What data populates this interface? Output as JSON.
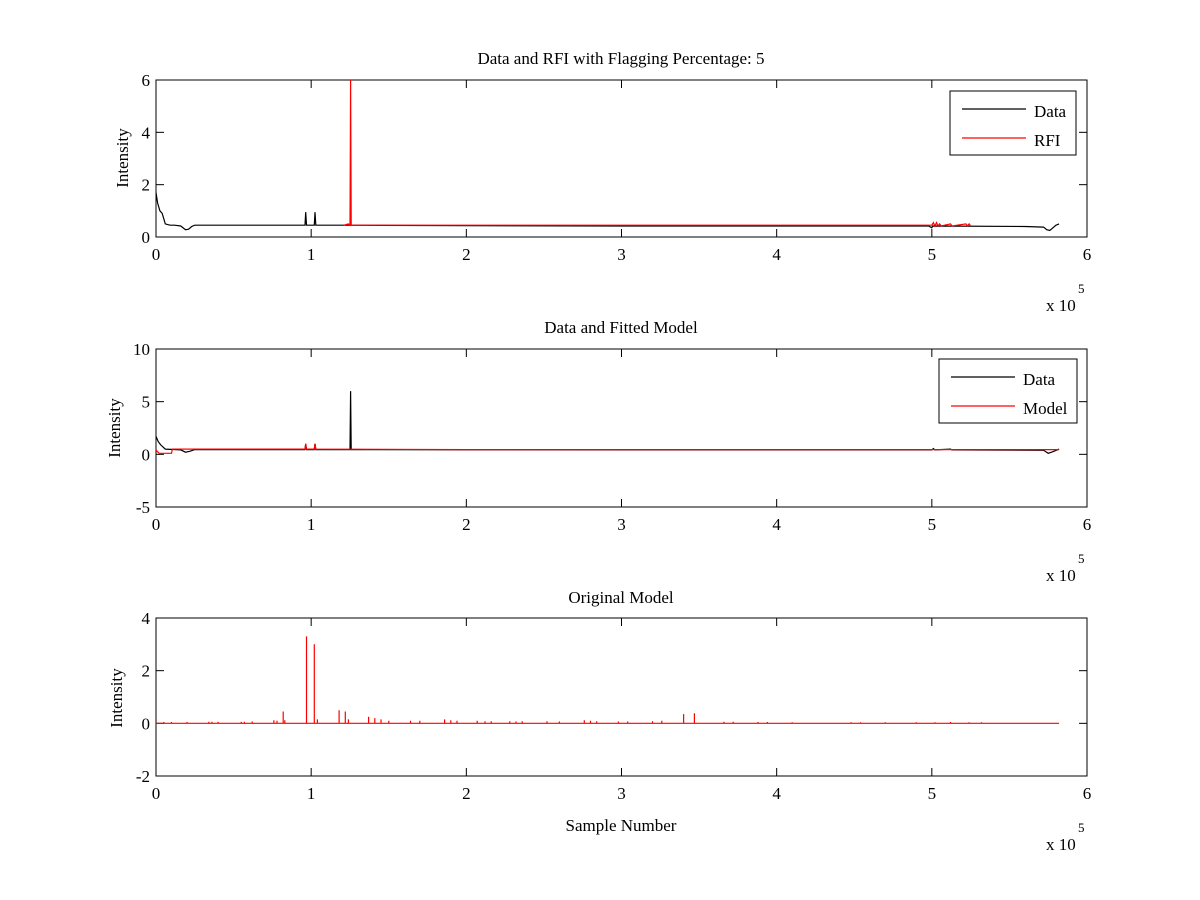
{
  "figure": {
    "background": "#ffffff"
  },
  "chart_data": [
    {
      "type": "line",
      "title": "Data and RFI with Flagging Percentage: 5",
      "xlabel": "",
      "ylabel": "Intensity",
      "xlim": [
        0,
        600000
      ],
      "ylim": [
        0,
        6
      ],
      "xticks": [
        0,
        100000,
        200000,
        300000,
        400000,
        500000,
        600000
      ],
      "xtick_labels": [
        "0",
        "1",
        "2",
        "3",
        "4",
        "5",
        "6"
      ],
      "yticks": [
        0,
        2,
        4,
        6
      ],
      "ytick_labels": [
        "0",
        "2",
        "4",
        "6"
      ],
      "x_exponent": {
        "base": "x 10",
        "power": "5"
      },
      "grid": false,
      "legend_position": "top-right",
      "series": [
        {
          "name": "Data",
          "color": "#000000",
          "points": [
            [
              0,
              1.7
            ],
            [
              1000,
              1.3
            ],
            [
              2500,
              1.0
            ],
            [
              4000,
              0.9
            ],
            [
              6000,
              0.5
            ],
            [
              9000,
              0.45
            ],
            [
              12000,
              0.45
            ],
            [
              16000,
              0.42
            ],
            [
              19000,
              0.28
            ],
            [
              21000,
              0.3
            ],
            [
              23000,
              0.4
            ],
            [
              25000,
              0.45
            ],
            [
              60000,
              0.45
            ],
            [
              96000,
              0.45
            ],
            [
              96500,
              0.95
            ],
            [
              97000,
              0.45
            ],
            [
              102000,
              0.45
            ],
            [
              102500,
              0.95
            ],
            [
              103000,
              0.45
            ],
            [
              120000,
              0.45
            ],
            [
              200000,
              0.43
            ],
            [
              300000,
              0.42
            ],
            [
              400000,
              0.42
            ],
            [
              498000,
              0.42
            ],
            [
              500000,
              0.35
            ],
            [
              500500,
              0.42
            ],
            [
              560000,
              0.4
            ],
            [
              572000,
              0.38
            ],
            [
              574000,
              0.28
            ],
            [
              576000,
              0.25
            ],
            [
              578000,
              0.35
            ],
            [
              580000,
              0.45
            ],
            [
              582000,
              0.5
            ]
          ]
        },
        {
          "name": "RFI",
          "color": "#ff0000",
          "points": [
            [
              121000,
              0.45
            ],
            [
              124000,
              0.5
            ],
            [
              125000,
              0.45
            ],
            [
              125400,
              6.0
            ],
            [
              125800,
              0.45
            ],
            [
              128000,
              0.45
            ],
            [
              500000,
              0.45
            ],
            [
              501000,
              0.55
            ],
            [
              502000,
              0.42
            ],
            [
              503000,
              0.55
            ],
            [
              504000,
              0.42
            ],
            [
              505000,
              0.5
            ],
            [
              506000,
              0.42
            ],
            [
              512000,
              0.5
            ],
            [
              513000,
              0.42
            ],
            [
              522000,
              0.5
            ],
            [
              523000,
              0.42
            ],
            [
              524000,
              0.5
            ],
            [
              525000,
              0.42
            ]
          ]
        }
      ]
    },
    {
      "type": "line",
      "title": "Data and Fitted Model",
      "xlabel": "",
      "ylabel": "Intensity",
      "xlim": [
        0,
        600000
      ],
      "ylim": [
        -5,
        10
      ],
      "xticks": [
        0,
        100000,
        200000,
        300000,
        400000,
        500000,
        600000
      ],
      "xtick_labels": [
        "0",
        "1",
        "2",
        "3",
        "4",
        "5",
        "6"
      ],
      "yticks": [
        -5,
        0,
        5,
        10
      ],
      "ytick_labels": [
        "-5",
        "0",
        "5",
        "10"
      ],
      "x_exponent": {
        "base": "x 10",
        "power": "5"
      },
      "grid": false,
      "legend_position": "top-right",
      "series": [
        {
          "name": "Data",
          "color": "#000000",
          "points": [
            [
              0,
              1.7
            ],
            [
              1500,
              1.2
            ],
            [
              3000,
              0.9
            ],
            [
              6000,
              0.5
            ],
            [
              16000,
              0.42
            ],
            [
              19000,
              0.2
            ],
            [
              22000,
              0.3
            ],
            [
              25000,
              0.45
            ],
            [
              96000,
              0.45
            ],
            [
              96500,
              1.0
            ],
            [
              97000,
              0.45
            ],
            [
              102000,
              0.45
            ],
            [
              102500,
              1.0
            ],
            [
              103000,
              0.45
            ],
            [
              125000,
              0.45
            ],
            [
              125400,
              6.0
            ],
            [
              125800,
              0.45
            ],
            [
              200000,
              0.43
            ],
            [
              400000,
              0.42
            ],
            [
              500000,
              0.42
            ],
            [
              501000,
              0.55
            ],
            [
              502000,
              0.42
            ],
            [
              512000,
              0.5
            ],
            [
              513000,
              0.42
            ],
            [
              572000,
              0.38
            ],
            [
              575000,
              0.1
            ],
            [
              578000,
              0.25
            ],
            [
              582000,
              0.5
            ]
          ]
        },
        {
          "name": "Model",
          "color": "#ff0000",
          "points": [
            [
              0,
              0.4
            ],
            [
              2000,
              0.1
            ],
            [
              10000,
              0.1
            ],
            [
              10500,
              0.5
            ],
            [
              96000,
              0.5
            ],
            [
              96500,
              1.0
            ],
            [
              97000,
              0.5
            ],
            [
              102000,
              0.5
            ],
            [
              102500,
              1.0
            ],
            [
              103000,
              0.5
            ],
            [
              200000,
              0.45
            ],
            [
              400000,
              0.45
            ],
            [
              582000,
              0.45
            ]
          ]
        }
      ]
    },
    {
      "type": "line",
      "title": "Original Model",
      "xlabel": "Sample Number",
      "ylabel": "Intensity",
      "xlim": [
        0,
        600000
      ],
      "ylim": [
        -2,
        4
      ],
      "xticks": [
        0,
        100000,
        200000,
        300000,
        400000,
        500000,
        600000
      ],
      "xtick_labels": [
        "0",
        "1",
        "2",
        "3",
        "4",
        "5",
        "6"
      ],
      "yticks": [
        -2,
        0,
        2,
        4
      ],
      "ytick_labels": [
        "-2",
        "0",
        "2",
        "4"
      ],
      "x_exponent": {
        "base": "x 10",
        "power": "5"
      },
      "grid": false,
      "legend_position": "none",
      "series": [
        {
          "name": "",
          "color": "#ff0000",
          "baseline": 0,
          "spikes": [
            [
              5000,
              0.05
            ],
            [
              10000,
              0.05
            ],
            [
              20000,
              0.05
            ],
            [
              34000,
              0.06
            ],
            [
              36000,
              0.06
            ],
            [
              40000,
              0.06
            ],
            [
              55000,
              0.06
            ],
            [
              57000,
              0.06
            ],
            [
              62000,
              0.07
            ],
            [
              76000,
              0.12
            ],
            [
              78000,
              0.1
            ],
            [
              82000,
              0.45
            ],
            [
              83000,
              0.12
            ],
            [
              97000,
              3.3
            ],
            [
              102000,
              3.0
            ],
            [
              104000,
              0.15
            ],
            [
              118000,
              0.5
            ],
            [
              122000,
              0.45
            ],
            [
              124000,
              0.15
            ],
            [
              137000,
              0.25
            ],
            [
              141000,
              0.2
            ],
            [
              145000,
              0.15
            ],
            [
              150000,
              0.1
            ],
            [
              164000,
              0.1
            ],
            [
              170000,
              0.1
            ],
            [
              186000,
              0.15
            ],
            [
              190000,
              0.12
            ],
            [
              194000,
              0.1
            ],
            [
              207000,
              0.1
            ],
            [
              212000,
              0.08
            ],
            [
              216000,
              0.08
            ],
            [
              228000,
              0.08
            ],
            [
              232000,
              0.07
            ],
            [
              236000,
              0.08
            ],
            [
              252000,
              0.08
            ],
            [
              260000,
              0.07
            ],
            [
              276000,
              0.12
            ],
            [
              280000,
              0.1
            ],
            [
              284000,
              0.08
            ],
            [
              298000,
              0.07
            ],
            [
              304000,
              0.07
            ],
            [
              320000,
              0.08
            ],
            [
              326000,
              0.1
            ],
            [
              340000,
              0.35
            ],
            [
              347000,
              0.38
            ],
            [
              366000,
              0.06
            ],
            [
              372000,
              0.06
            ],
            [
              388000,
              0.05
            ],
            [
              394000,
              0.05
            ],
            [
              410000,
              0.04
            ],
            [
              448000,
              0.04
            ],
            [
              454000,
              0.04
            ],
            [
              470000,
              0.04
            ],
            [
              490000,
              0.04
            ],
            [
              502000,
              0.04
            ],
            [
              512000,
              0.05
            ],
            [
              524000,
              0.04
            ],
            [
              532000,
              0.04
            ]
          ]
        }
      ]
    }
  ]
}
